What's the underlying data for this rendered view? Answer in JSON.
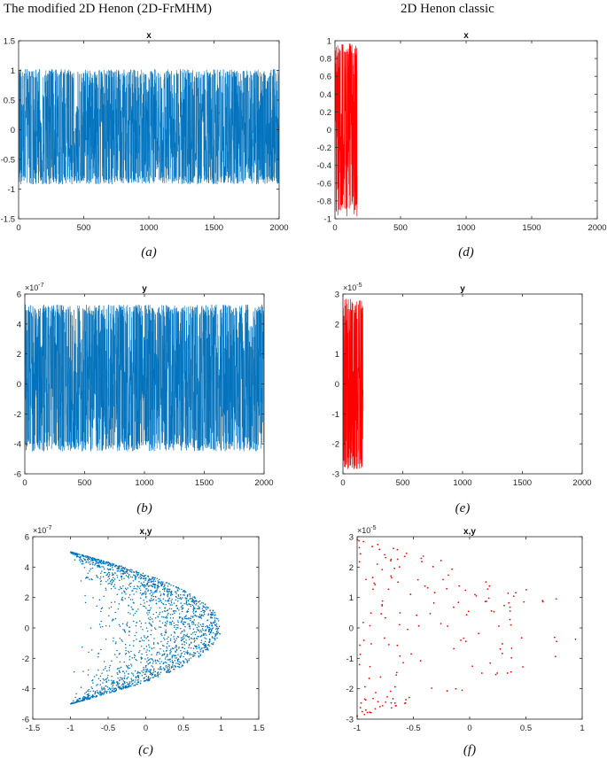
{
  "figure": {
    "left_heading": "The modified 2D Henon (2D-FrMHM)",
    "right_heading": "2D Henon classic"
  },
  "chart_data": [
    {
      "id": "a",
      "type": "line",
      "title": "x",
      "caption": "(a)",
      "color": "#0072BD",
      "n": 2000,
      "amp": 0.97,
      "offset": 0.05,
      "xlim": [
        0,
        2000
      ],
      "ylim": [
        -1.5,
        1.5
      ],
      "xticks": [
        0,
        500,
        1000,
        1500,
        2000
      ],
      "yticks": [
        -1.5,
        -1,
        -0.5,
        0,
        0.5,
        1,
        1.5
      ],
      "ytick_labels": [
        "-1.5",
        "-1",
        "-0.5",
        "0",
        "0.5",
        "1",
        "1.5"
      ],
      "exponent": ""
    },
    {
      "id": "d",
      "type": "line",
      "title": "x",
      "caption": "(d)",
      "color": "#FF0000",
      "n": 170,
      "amp": 0.98,
      "offset": 0.0,
      "xlim": [
        0,
        2000
      ],
      "ylim": [
        -1,
        1
      ],
      "xticks": [
        0,
        500,
        1000,
        1500,
        2000
      ],
      "yticks": [
        -1,
        -0.8,
        -0.6,
        -0.4,
        -0.2,
        0,
        0.2,
        0.4,
        0.6,
        0.8,
        1
      ],
      "ytick_labels": [
        "-1",
        "-0.8",
        "-0.6",
        "-0.4",
        "-0.2",
        "0",
        "0.2",
        "0.4",
        "0.6",
        "0.8",
        "1"
      ],
      "exponent": ""
    },
    {
      "id": "b",
      "type": "line",
      "title": "y",
      "caption": "(b)",
      "color": "#0072BD",
      "n": 2000,
      "amp": 4.9,
      "offset": 0.4,
      "xlim": [
        0,
        2000
      ],
      "ylim": [
        -6,
        6
      ],
      "xticks": [
        0,
        500,
        1000,
        1500,
        2000
      ],
      "yticks": [
        -6,
        -4,
        -2,
        0,
        2,
        4,
        6
      ],
      "ytick_labels": [
        "-6",
        "-4",
        "-2",
        "0",
        "2",
        "4",
        "6"
      ],
      "exponent": "-7"
    },
    {
      "id": "e",
      "type": "line",
      "title": "y",
      "caption": "(e)",
      "color": "#FF0000",
      "n": 170,
      "amp": 2.85,
      "offset": 0.0,
      "xlim": [
        0,
        2000
      ],
      "ylim": [
        -3,
        3
      ],
      "xticks": [
        0,
        500,
        1000,
        1500,
        2000
      ],
      "yticks": [
        -3,
        -2,
        -1,
        0,
        1,
        2,
        3
      ],
      "ytick_labels": [
        "-3",
        "-2",
        "-1",
        "0",
        "1",
        "2",
        "3"
      ],
      "exponent": "-5"
    },
    {
      "id": "c",
      "type": "scatter",
      "title": "x,y",
      "caption": "(c)",
      "color": "#0072BD",
      "n": 2000,
      "ymax": 5,
      "xlim": [
        -1.5,
        1.5
      ],
      "ylim": [
        -6,
        6
      ],
      "xticks": [
        -1.5,
        -1,
        -0.5,
        0,
        0.5,
        1,
        1.5
      ],
      "xtick_labels": [
        "-1.5",
        "-1",
        "-0.5",
        "0",
        "0.5",
        "1",
        "1.5"
      ],
      "yticks": [
        -6,
        -4,
        -2,
        0,
        2,
        4,
        6
      ],
      "ytick_labels": [
        "-6",
        "-4",
        "-2",
        "0",
        "2",
        "4",
        "6"
      ],
      "exponent": "-7"
    },
    {
      "id": "f",
      "type": "scatter",
      "title": "x,y",
      "caption": "(f)",
      "color": "#FF0000",
      "n": 170,
      "ymax": 2.9,
      "xlim": [
        -1,
        1
      ],
      "ylim": [
        -3,
        3
      ],
      "xticks": [
        -1,
        -0.5,
        0,
        0.5,
        1
      ],
      "xtick_labels": [
        "-1",
        "-0.5",
        "0",
        "0.5",
        "1"
      ],
      "yticks": [
        -3,
        -2,
        -1,
        0,
        1,
        2,
        3
      ],
      "ytick_labels": [
        "-3",
        "-2",
        "-1",
        "0",
        "1",
        "2",
        "3"
      ],
      "exponent": "-5"
    }
  ]
}
